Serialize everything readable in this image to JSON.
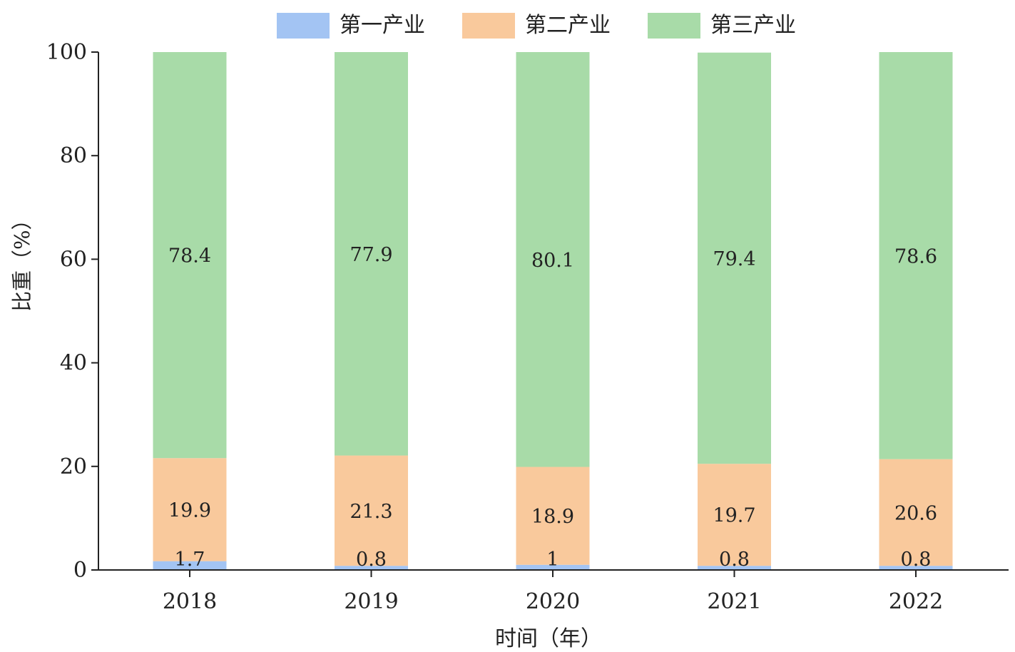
{
  "chart_data": {
    "type": "bar",
    "stacked": true,
    "categories": [
      "2018",
      "2019",
      "2020",
      "2021",
      "2022"
    ],
    "series": [
      {
        "name": "第一产业",
        "values": [
          1.7,
          0.8,
          1,
          0.8,
          0.8
        ],
        "labels": [
          "1.7",
          "0.8",
          "1",
          "0.8",
          "0.8"
        ],
        "color": "#a3c4f3"
      },
      {
        "name": "第二产业",
        "values": [
          19.9,
          21.3,
          18.9,
          19.7,
          20.6
        ],
        "labels": [
          "19.9",
          "21.3",
          "18.9",
          "19.7",
          "20.6"
        ],
        "color": "#f9c99c"
      },
      {
        "name": "第三产业",
        "values": [
          78.4,
          77.9,
          80.1,
          79.4,
          78.6
        ],
        "labels": [
          "78.4",
          "77.9",
          "80.1",
          "79.4",
          "78.6"
        ],
        "color": "#a8dba8"
      }
    ],
    "xlabel": "时间（年）",
    "ylabel": "比重（%）",
    "ylim": [
      0,
      100
    ],
    "yticks": [
      "0",
      "20",
      "40",
      "60",
      "80",
      "100"
    ],
    "grid": false,
    "legend_position": "top"
  }
}
